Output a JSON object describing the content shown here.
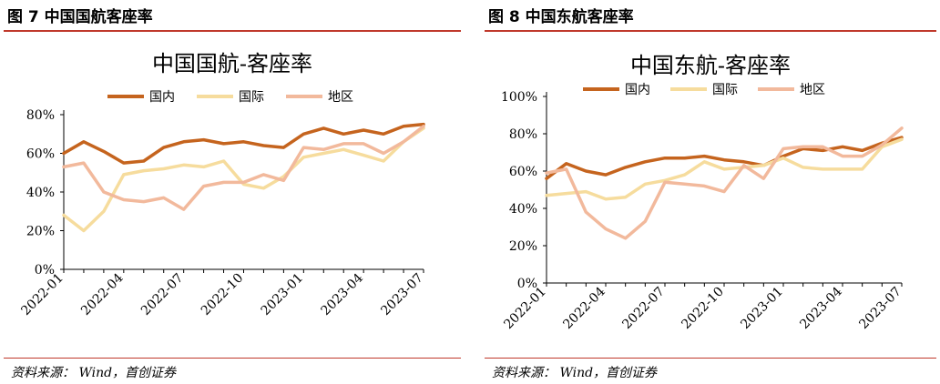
{
  "figures": [
    {
      "caption": "图 7 中国国航客座率",
      "source": "资料来源： Wind，首创证券"
    },
    {
      "caption": "图 8 中国东航客座率",
      "source": "资料来源： Wind，首创证券"
    }
  ],
  "colors": {
    "domestic": "#c5641e",
    "international": "#f6dc9d",
    "regional": "#f2b99c",
    "rule": "#c0392b",
    "axis": "#000000"
  },
  "chart_data": [
    {
      "type": "line",
      "title": "中国国航-客座率",
      "x": [
        "2022-01",
        "2022-02",
        "2022-03",
        "2022-04",
        "2022-05",
        "2022-06",
        "2022-07",
        "2022-08",
        "2022-09",
        "2022-10",
        "2022-11",
        "2022-12",
        "2023-01",
        "2023-02",
        "2023-03",
        "2023-04",
        "2023-05",
        "2023-06",
        "2023-07"
      ],
      "x_tick_labels": [
        "2022-01",
        "2022-04",
        "2022-07",
        "2022-10",
        "2023-01",
        "2023-04",
        "2023-07"
      ],
      "y_tick_labels": [
        "0%",
        "20%",
        "40%",
        "60%",
        "80%"
      ],
      "ylim": [
        0,
        80
      ],
      "legend_position": "top",
      "grid": false,
      "series": [
        {
          "name": "国内",
          "color_key": "domestic",
          "values": [
            60,
            66,
            61,
            55,
            56,
            63,
            66,
            67,
            65,
            66,
            64,
            63,
            70,
            73,
            70,
            72,
            70,
            74,
            75
          ]
        },
        {
          "name": "国际",
          "color_key": "international",
          "values": [
            28,
            20,
            30,
            49,
            51,
            52,
            54,
            53,
            56,
            44,
            42,
            48,
            58,
            60,
            62,
            59,
            56,
            66,
            73
          ]
        },
        {
          "name": "地区",
          "color_key": "regional",
          "values": [
            53,
            55,
            40,
            36,
            35,
            37,
            31,
            43,
            45,
            45,
            49,
            46,
            63,
            62,
            65,
            65,
            60,
            66,
            74
          ]
        }
      ]
    },
    {
      "type": "line",
      "title": "中国东航-客座率",
      "x": [
        "2022-01",
        "2022-02",
        "2022-03",
        "2022-04",
        "2022-05",
        "2022-06",
        "2022-07",
        "2022-08",
        "2022-09",
        "2022-10",
        "2022-11",
        "2022-12",
        "2023-01",
        "2023-02",
        "2023-03",
        "2023-04",
        "2023-05",
        "2023-06",
        "2023-07"
      ],
      "x_tick_labels": [
        "2022-01",
        "2022-04",
        "2022-07",
        "2022-10",
        "2023-01",
        "2023-04",
        "2023-07"
      ],
      "y_tick_labels": [
        "0%",
        "20%",
        "40%",
        "60%",
        "80%",
        "100%"
      ],
      "ylim": [
        0,
        100
      ],
      "legend_position": "top",
      "grid": false,
      "series": [
        {
          "name": "国内",
          "color_key": "domestic",
          "values": [
            56,
            64,
            60,
            58,
            62,
            65,
            67,
            67,
            68,
            66,
            65,
            63,
            68,
            72,
            71,
            73,
            71,
            75,
            78
          ]
        },
        {
          "name": "国际",
          "color_key": "international",
          "values": [
            47,
            48,
            49,
            45,
            46,
            53,
            55,
            58,
            65,
            61,
            62,
            63,
            67,
            62,
            61,
            61,
            61,
            73,
            77
          ]
        },
        {
          "name": "地区",
          "color_key": "regional",
          "values": [
            59,
            61,
            38,
            29,
            24,
            33,
            54,
            53,
            52,
            49,
            63,
            56,
            72,
            73,
            73,
            68,
            68,
            74,
            83
          ]
        }
      ]
    }
  ]
}
